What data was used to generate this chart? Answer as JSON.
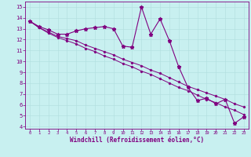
{
  "xlabel": "Windchill (Refroidissement éolien,°C)",
  "ylabel": "",
  "background_color": "#c8f0f0",
  "line_color": "#800080",
  "x_hours": [
    0,
    1,
    2,
    3,
    4,
    5,
    6,
    7,
    8,
    9,
    10,
    11,
    12,
    13,
    14,
    15,
    16,
    17,
    18,
    19,
    20,
    21,
    22,
    23
  ],
  "y_main": [
    13.7,
    13.2,
    12.9,
    12.5,
    12.5,
    12.8,
    13.0,
    13.1,
    13.2,
    13.0,
    11.4,
    11.3,
    15.0,
    12.5,
    13.9,
    11.9,
    9.5,
    7.6,
    6.4,
    6.6,
    6.1,
    6.5,
    4.3,
    4.9
  ],
  "y_line2": [
    13.7,
    13.1,
    12.7,
    12.3,
    12.1,
    11.9,
    11.5,
    11.2,
    10.9,
    10.6,
    10.2,
    9.9,
    9.6,
    9.2,
    8.9,
    8.5,
    8.1,
    7.7,
    7.4,
    7.1,
    6.8,
    6.5,
    6.1,
    5.8
  ],
  "y_line3": [
    13.7,
    13.1,
    12.6,
    12.2,
    11.9,
    11.6,
    11.2,
    10.9,
    10.5,
    10.2,
    9.8,
    9.5,
    9.1,
    8.8,
    8.4,
    8.0,
    7.6,
    7.3,
    6.9,
    6.5,
    6.2,
    5.8,
    5.5,
    5.1
  ],
  "xlim": [
    -0.5,
    23.5
  ],
  "ylim": [
    3.8,
    15.5
  ],
  "yticks": [
    4,
    5,
    6,
    7,
    8,
    9,
    10,
    11,
    12,
    13,
    14,
    15
  ],
  "xticks": [
    0,
    1,
    2,
    3,
    4,
    5,
    6,
    7,
    8,
    9,
    10,
    11,
    12,
    13,
    14,
    15,
    16,
    17,
    18,
    19,
    20,
    21,
    22,
    23
  ],
  "grid_color": "#b0dede",
  "tick_color": "#800080",
  "xlabel_color": "#800080"
}
